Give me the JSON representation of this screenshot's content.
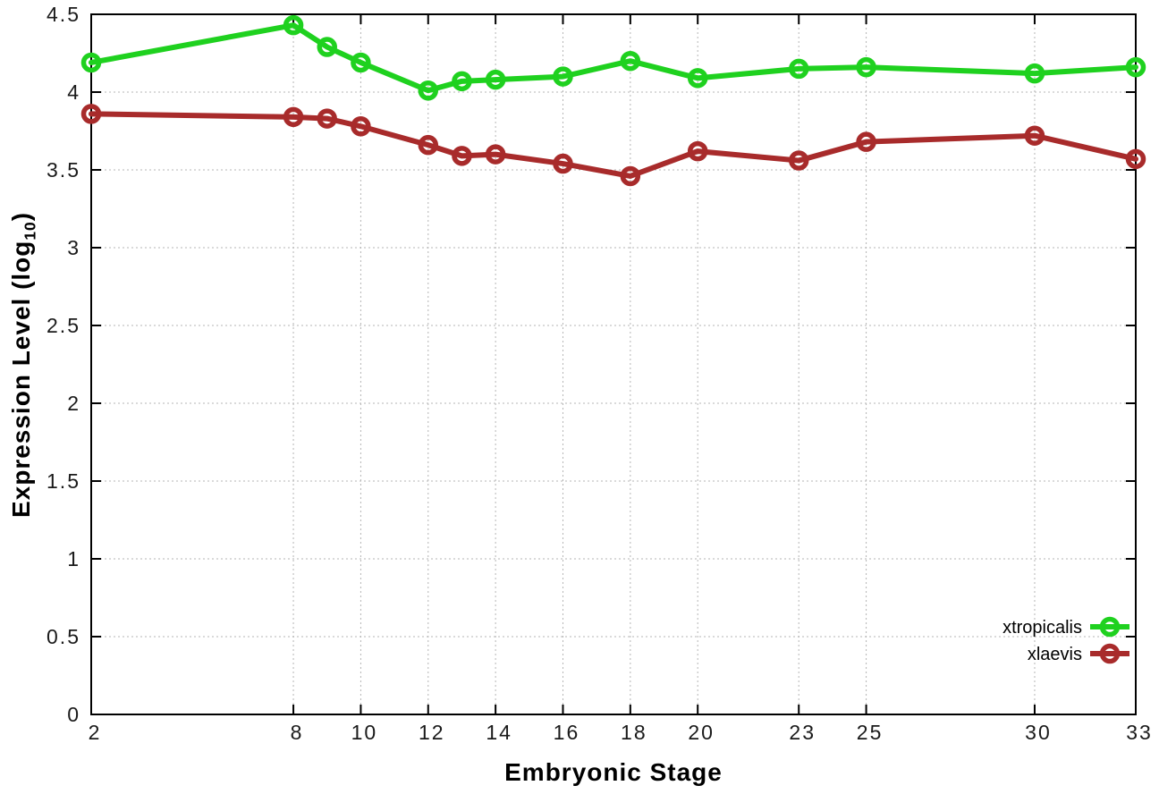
{
  "chart_data": {
    "type": "line",
    "title": "",
    "xlabel": "Embryonic Stage",
    "ylabel": "Expression Level (log10)",
    "ylabel_parts": {
      "main": "Expression Level (log",
      "sub": "10",
      "close": ")"
    },
    "xlim": [
      2,
      33
    ],
    "ylim": [
      0,
      4.5
    ],
    "grid": true,
    "legend_position": "bottom-right-inside",
    "x_ticks": [
      2,
      8,
      10,
      12,
      14,
      16,
      18,
      20,
      23,
      25,
      30,
      33
    ],
    "x_tick_labels": [
      "2",
      "8",
      "10",
      "12",
      "14",
      "16",
      "18",
      "20",
      "23",
      "25",
      "30",
      "33"
    ],
    "y_ticks": [
      0,
      0.5,
      1,
      1.5,
      2,
      2.5,
      3,
      3.5,
      4,
      4.5
    ],
    "y_tick_labels": [
      "0",
      "0.5",
      "1",
      "1.5",
      "2",
      "2.5",
      "3",
      "3.5",
      "4",
      "4.5"
    ],
    "x": [
      2,
      8,
      9,
      10,
      12,
      13,
      14,
      16,
      18,
      20,
      23,
      25,
      30,
      33
    ],
    "series": [
      {
        "name": "xtropicalis",
        "color": "#1fd11f",
        "values": [
          4.19,
          4.43,
          4.29,
          4.19,
          4.01,
          4.07,
          4.08,
          4.1,
          4.2,
          4.09,
          4.15,
          4.16,
          4.12,
          4.16
        ]
      },
      {
        "name": "xlaevis",
        "color": "#a82b2b",
        "values": [
          3.86,
          3.84,
          3.83,
          3.78,
          3.66,
          3.59,
          3.6,
          3.54,
          3.46,
          3.62,
          3.56,
          3.68,
          3.72,
          3.57
        ]
      }
    ],
    "colors": {
      "axis": "#000000",
      "grid": "#b5b5b5",
      "tick_label": "#1a1a1a"
    }
  }
}
